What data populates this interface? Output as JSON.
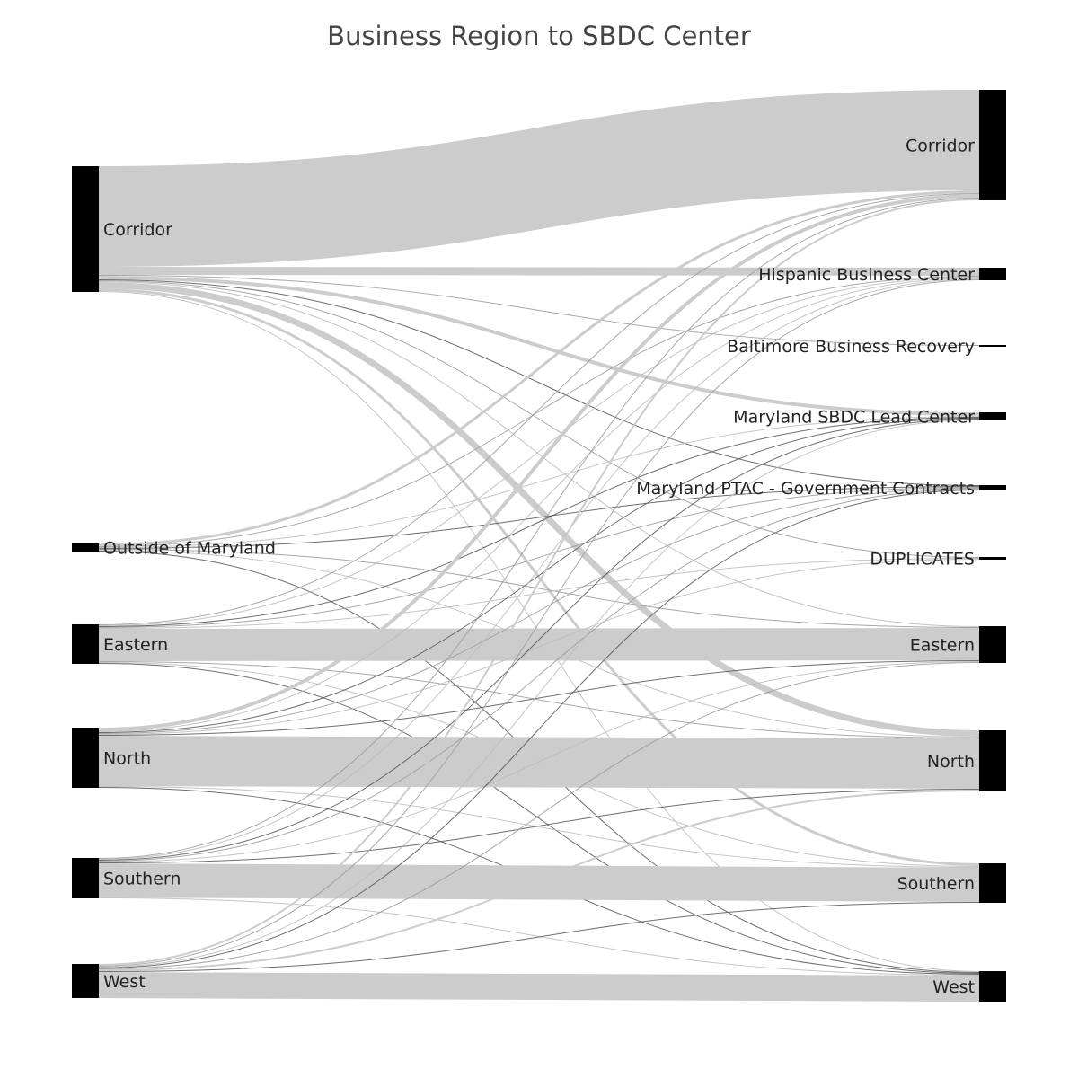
{
  "title": "Business Region to SBDC Center",
  "colors": {
    "node": "#000000",
    "band": "#cccccc",
    "line_dark": "#555555",
    "line_mid": "#999999",
    "line_light": "#bbbbbb"
  },
  "nodes": {
    "source": [
      "Corridor",
      "Outside of Maryland",
      "Eastern",
      "North",
      "Southern",
      "West"
    ],
    "target": [
      "Corridor",
      "Hispanic Business Center",
      "Baltimore Business Recovery",
      "Maryland SBDC Lead Center",
      "Maryland PTAC - Government Contracts",
      "DUPLICATES",
      "Eastern",
      "North",
      "Southern",
      "West"
    ]
  },
  "chart_data": {
    "type": "sankey",
    "title": "Business Region to SBDC Center",
    "links": [
      {
        "source": "Corridor",
        "target": "Corridor",
        "value": 112
      },
      {
        "source": "Corridor",
        "target": "Hispanic Business Center",
        "value": 9
      },
      {
        "source": "Corridor",
        "target": "Baltimore Business Recovery",
        "value": 1
      },
      {
        "source": "Corridor",
        "target": "Maryland SBDC Lead Center",
        "value": 4
      },
      {
        "source": "Corridor",
        "target": "Maryland PTAC - Government Contracts",
        "value": 1
      },
      {
        "source": "Corridor",
        "target": "DUPLICATES",
        "value": 1
      },
      {
        "source": "Corridor",
        "target": "Eastern",
        "value": 1
      },
      {
        "source": "Corridor",
        "target": "North",
        "value": 7
      },
      {
        "source": "Corridor",
        "target": "Southern",
        "value": 3
      },
      {
        "source": "Corridor",
        "target": "West",
        "value": 1
      },
      {
        "source": "Outside of Maryland",
        "target": "Corridor",
        "value": 3
      },
      {
        "source": "Outside of Maryland",
        "target": "Hispanic Business Center",
        "value": 1
      },
      {
        "source": "Outside of Maryland",
        "target": "Maryland SBDC Lead Center",
        "value": 1
      },
      {
        "source": "Outside of Maryland",
        "target": "Maryland PTAC - Government Contracts",
        "value": 1
      },
      {
        "source": "Outside of Maryland",
        "target": "Eastern",
        "value": 1
      },
      {
        "source": "Outside of Maryland",
        "target": "North",
        "value": 1
      },
      {
        "source": "Outside of Maryland",
        "target": "West",
        "value": 1
      },
      {
        "source": "Eastern",
        "target": "Corridor",
        "value": 1
      },
      {
        "source": "Eastern",
        "target": "Hispanic Business Center",
        "value": 1
      },
      {
        "source": "Eastern",
        "target": "Maryland SBDC Lead Center",
        "value": 1
      },
      {
        "source": "Eastern",
        "target": "Maryland PTAC - Government Contracts",
        "value": 1
      },
      {
        "source": "Eastern",
        "target": "DUPLICATES",
        "value": 1
      },
      {
        "source": "Eastern",
        "target": "Eastern",
        "value": 36
      },
      {
        "source": "Eastern",
        "target": "North",
        "value": 1
      },
      {
        "source": "Eastern",
        "target": "Southern",
        "value": 1
      },
      {
        "source": "Eastern",
        "target": "West",
        "value": 1
      },
      {
        "source": "North",
        "target": "Corridor",
        "value": 4
      },
      {
        "source": "North",
        "target": "Hispanic Business Center",
        "value": 1
      },
      {
        "source": "North",
        "target": "Maryland SBDC Lead Center",
        "value": 1
      },
      {
        "source": "North",
        "target": "Maryland PTAC - Government Contracts",
        "value": 1
      },
      {
        "source": "North",
        "target": "DUPLICATES",
        "value": 1
      },
      {
        "source": "North",
        "target": "Eastern",
        "value": 1
      },
      {
        "source": "North",
        "target": "North",
        "value": 56
      },
      {
        "source": "North",
        "target": "Southern",
        "value": 1
      },
      {
        "source": "North",
        "target": "West",
        "value": 1
      },
      {
        "source": "Southern",
        "target": "Corridor",
        "value": 1
      },
      {
        "source": "Southern",
        "target": "Hispanic Business Center",
        "value": 1
      },
      {
        "source": "Southern",
        "target": "Maryland SBDC Lead Center",
        "value": 1
      },
      {
        "source": "Southern",
        "target": "Maryland PTAC - Government Contracts",
        "value": 1
      },
      {
        "source": "Southern",
        "target": "Eastern",
        "value": 1
      },
      {
        "source": "Southern",
        "target": "North",
        "value": 1
      },
      {
        "source": "Southern",
        "target": "Southern",
        "value": 38
      },
      {
        "source": "Southern",
        "target": "West",
        "value": 1
      },
      {
        "source": "West",
        "target": "Corridor",
        "value": 2
      },
      {
        "source": "West",
        "target": "Hispanic Business Center",
        "value": 1
      },
      {
        "source": "West",
        "target": "Maryland SBDC Lead Center",
        "value": 1
      },
      {
        "source": "West",
        "target": "Maryland PTAC - Government Contracts",
        "value": 1
      },
      {
        "source": "West",
        "target": "Eastern",
        "value": 1
      },
      {
        "source": "West",
        "target": "North",
        "value": 2
      },
      {
        "source": "West",
        "target": "Southern",
        "value": 1
      },
      {
        "source": "West",
        "target": "West",
        "value": 29
      }
    ]
  }
}
